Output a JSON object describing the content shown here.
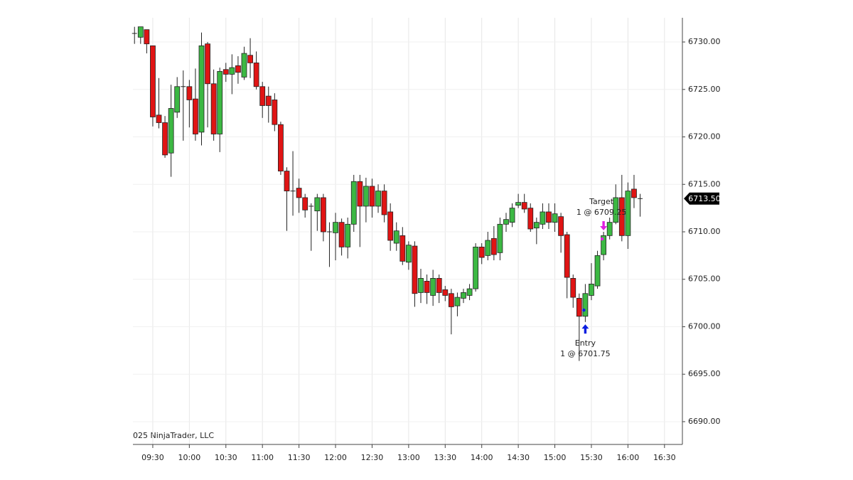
{
  "chart_data": {
    "type": "candlestick",
    "copyright": "025 NinjaTrader, LLC",
    "up_color": "#3cb843",
    "down_color": "#e01414",
    "xlim": [
      553.7,
      1004.7
    ],
    "ylim": [
      6687.6,
      6732.55
    ],
    "grid": true,
    "xticks": [
      {
        "value": 570,
        "label": "09:30"
      },
      {
        "value": 600,
        "label": "10:00"
      },
      {
        "value": 630,
        "label": "10:30"
      },
      {
        "value": 660,
        "label": "11:00"
      },
      {
        "value": 690,
        "label": "11:30"
      },
      {
        "value": 720,
        "label": "12:00"
      },
      {
        "value": 750,
        "label": "12:30"
      },
      {
        "value": 780,
        "label": "13:00"
      },
      {
        "value": 810,
        "label": "13:30"
      },
      {
        "value": 840,
        "label": "14:00"
      },
      {
        "value": 870,
        "label": "14:30"
      },
      {
        "value": 900,
        "label": "15:00"
      },
      {
        "value": 930,
        "label": "15:30"
      },
      {
        "value": 960,
        "label": "16:00"
      },
      {
        "value": 990,
        "label": "16:30"
      }
    ],
    "yticks": [
      {
        "value": 6690,
        "label": "6690.00"
      },
      {
        "value": 6695,
        "label": "6695.00"
      },
      {
        "value": 6700,
        "label": "6700.00"
      },
      {
        "value": 6705,
        "label": "6705.00"
      },
      {
        "value": 6710,
        "label": "6710.00"
      },
      {
        "value": 6715,
        "label": "6715.00"
      },
      {
        "value": 6720,
        "label": "6720.00"
      },
      {
        "value": 6725,
        "label": "6725.00"
      },
      {
        "value": 6730,
        "label": "6730.00"
      }
    ],
    "x": [
      555,
      560,
      565,
      570,
      575,
      580,
      585,
      590,
      595,
      600,
      605,
      610,
      615,
      620,
      625,
      630,
      635,
      640,
      645,
      650,
      655,
      660,
      665,
      670,
      675,
      680,
      685,
      690,
      695,
      700,
      705,
      710,
      715,
      720,
      725,
      730,
      735,
      740,
      745,
      750,
      755,
      760,
      765,
      770,
      775,
      780,
      785,
      790,
      795,
      800,
      805,
      810,
      815,
      820,
      825,
      830,
      835,
      840,
      845,
      850,
      855,
      860,
      865,
      870,
      875,
      880,
      885,
      890,
      895,
      900,
      905,
      910,
      915,
      920,
      925,
      930,
      935,
      940,
      945,
      950,
      955,
      960,
      965,
      970
    ],
    "open": [
      6730.9,
      6730.5,
      6731.3,
      6729.6,
      6722.3,
      6721.5,
      6718.3,
      6722.6,
      6725.3,
      6725.3,
      6724,
      6720.5,
      6729.8,
      6725.6,
      6720.3,
      6727.1,
      6726.6,
      6727.5,
      6726.3,
      6728.6,
      6727.8,
      6725.3,
      6724.3,
      6723.9,
      6721.3,
      6716.4,
      6714.3,
      6714.6,
      6713.6,
      6712.7,
      6712.2,
      6713.6,
      6710,
      6709.9,
      6711,
      6708.4,
      6710.8,
      6715.3,
      6712.7,
      6714.8,
      6712.7,
      6714.3,
      6712.1,
      6708.8,
      6709.6,
      6706.8,
      6708.5,
      6703.6,
      6704.8,
      6703.3,
      6705.1,
      6703.9,
      6703.5,
      6702.2,
      6703,
      6703.3,
      6704,
      6708.4,
      6707.5,
      6709.3,
      6707.8,
      6710.8,
      6711,
      6712.8,
      6713.1,
      6712.5,
      6710.4,
      6710.8,
      6712.1,
      6711,
      6711.6,
      6709.7,
      6705.1,
      6703,
      6701.1,
      6703.3,
      6704.3,
      6707.6,
      6709.6,
      6711,
      6713.6,
      6709.6,
      6714.5,
      6713.5
    ],
    "high": [
      6731.6,
      6731.6,
      6731.3,
      6729.6,
      6726.2,
      6722.2,
      6725.5,
      6726.3,
      6727,
      6726,
      6727.2,
      6731,
      6730,
      6727.1,
      6727.3,
      6727.8,
      6728.7,
      6728.5,
      6729.5,
      6730.4,
      6729,
      6725.8,
      6725.3,
      6724.6,
      6721.6,
      6716.8,
      6718.5,
      6715.6,
      6714,
      6713,
      6714,
      6714,
      6711,
      6712,
      6711.4,
      6711.5,
      6716,
      6716,
      6715.7,
      6715.6,
      6715,
      6715,
      6713,
      6711,
      6710.5,
      6709,
      6709,
      6706.1,
      6705.5,
      6706,
      6705.5,
      6704.3,
      6704,
      6703.6,
      6704,
      6704.5,
      6708.8,
      6708.8,
      6710,
      6710.6,
      6711.5,
      6712,
      6713,
      6714,
      6714,
      6713,
      6711.5,
      6713,
      6713,
      6713,
      6712,
      6710,
      6705.5,
      6703.5,
      6704.5,
      6706.7,
      6708,
      6710,
      6711.5,
      6715,
      6716,
      6715.2,
      6716,
      6714
    ],
    "low": [
      6729.8,
      6729.8,
      6728.8,
      6721.1,
      6720.9,
      6717.8,
      6715.8,
      6722,
      6719.6,
      6721,
      6719.6,
      6719.1,
      6721,
      6719.6,
      6718.4,
      6725.8,
      6724.5,
      6725.6,
      6726,
      6726.2,
      6725,
      6722,
      6721.5,
      6720.6,
      6716,
      6710.1,
      6711.7,
      6712,
      6711.5,
      6708,
      6710.1,
      6709,
      6706.3,
      6707,
      6707.5,
      6707.2,
      6710,
      6708.4,
      6711,
      6711.5,
      6712,
      6711,
      6708,
      6708,
      6706.5,
      6706,
      6702.1,
      6702.5,
      6702.4,
      6702.2,
      6702.5,
      6702.7,
      6699.2,
      6701.1,
      6702.5,
      6702.8,
      6703.7,
      6706.6,
      6707,
      6707,
      6707,
      6710,
      6710.5,
      6712.5,
      6712,
      6710,
      6708.7,
      6710.3,
      6710.3,
      6710,
      6707.8,
      6703,
      6702,
      6696.4,
      6700.5,
      6702.8,
      6704,
      6707,
      6709.2,
      6710.8,
      6709,
      6708.2,
      6712.5,
      6711.6
    ],
    "close": [
      6730.9,
      6731.6,
      6729.8,
      6722.1,
      6721.5,
      6718.1,
      6723,
      6725.3,
      6725.3,
      6723.9,
      6720.3,
      6729.6,
      6725.6,
      6720.3,
      6726.9,
      6726.6,
      6727.3,
      6726.8,
      6728.8,
      6727.8,
      6725.3,
      6723.3,
      6723.3,
      6721.3,
      6716.4,
      6714.3,
      6714.3,
      6713.6,
      6712.3,
      6712.7,
      6713.6,
      6710,
      6710,
      6711,
      6708.4,
      6710.8,
      6715.3,
      6712.7,
      6714.8,
      6712.7,
      6714.3,
      6711.8,
      6709.1,
      6710.1,
      6706.9,
      6708.6,
      6703.5,
      6705.1,
      6703.6,
      6705.1,
      6703.6,
      6703.3,
      6702.1,
      6703.1,
      6703.6,
      6704,
      6708.4,
      6707.3,
      6709.1,
      6707.6,
      6710.8,
      6711.3,
      6712.5,
      6713.1,
      6712.4,
      6710.3,
      6711,
      6712.1,
      6711,
      6711.9,
      6709.6,
      6705.2,
      6703.1,
      6701.1,
      6703.5,
      6704.5,
      6707.5,
      6709.6,
      6711,
      6713.6,
      6709.6,
      6714.3,
      6713.6,
      6713.5
    ],
    "last_price": {
      "value": 6713.5,
      "label": "6713.50"
    },
    "annotations": [
      {
        "name": "Entry",
        "text": "1 @ 6701.75",
        "price": 6701.75,
        "x": 925,
        "direction": "up",
        "color": "#0a1ee0"
      },
      {
        "name": "Target",
        "text": "1 @ 6709.25",
        "price": 6709.25,
        "x": 940,
        "direction": "down",
        "color": "#e020e0"
      }
    ]
  }
}
